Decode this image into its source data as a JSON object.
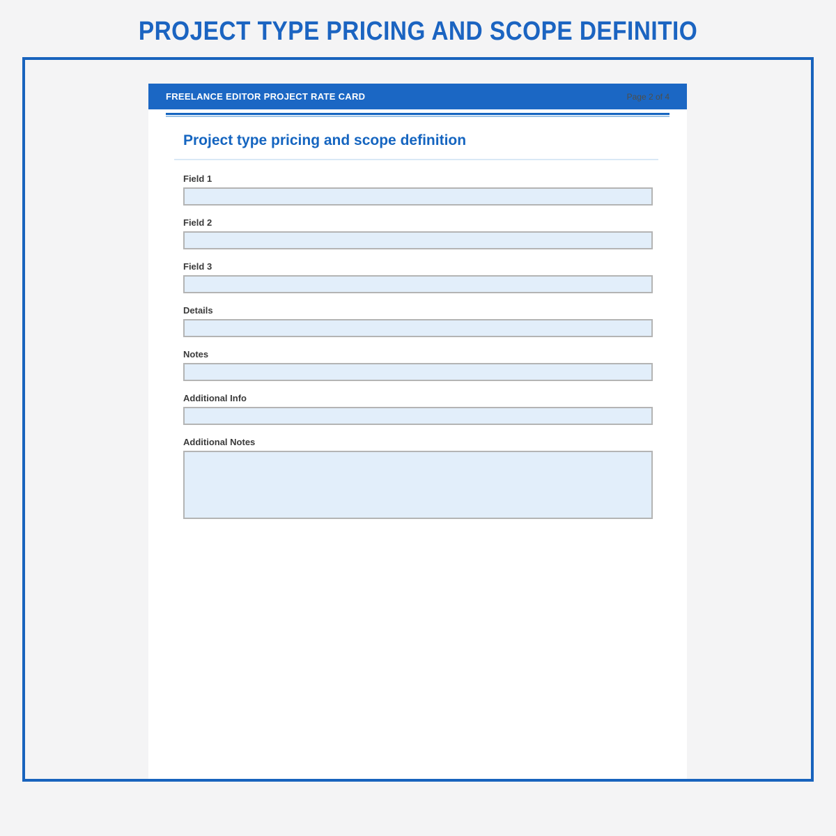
{
  "page_title": "PROJECT TYPE PRICING AND SCOPE DEFINITIO",
  "document": {
    "header": {
      "title": "FREELANCE EDITOR PROJECT RATE CARD",
      "page_indicator": "Page 2 of 4"
    },
    "section": {
      "title": "Project type pricing and scope definition"
    },
    "fields": [
      {
        "label": "Field 1",
        "value": "",
        "type": "text"
      },
      {
        "label": "Field 2",
        "value": "",
        "type": "text"
      },
      {
        "label": "Field 3",
        "value": "",
        "type": "text"
      },
      {
        "label": "Details",
        "value": "",
        "type": "text"
      },
      {
        "label": "Notes",
        "value": "",
        "type": "text"
      },
      {
        "label": "Additional Info",
        "value": "",
        "type": "text"
      },
      {
        "label": "Additional Notes",
        "value": "",
        "type": "textarea"
      }
    ]
  },
  "colors": {
    "accent_blue": "#1565c0",
    "title_blue": "#1b64c1",
    "header_bar_blue": "#1b67c4",
    "frame_border_blue": "#1863bd",
    "input_fill": "#e2eefa",
    "input_border": "#b4b4b4",
    "label_text": "#3a3a3a",
    "page_indicator_text": "#4e4e49",
    "background_gray": "#f4f4f5"
  }
}
